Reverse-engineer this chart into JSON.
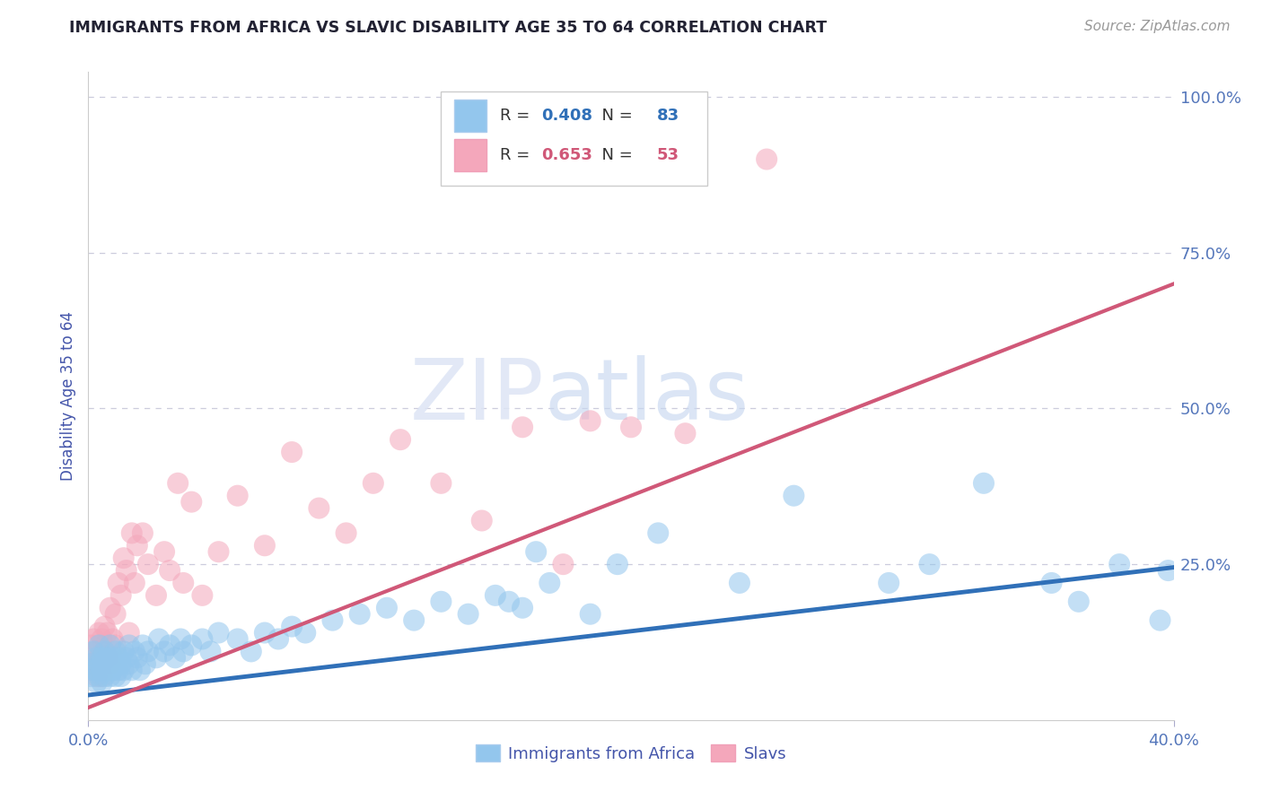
{
  "title": "IMMIGRANTS FROM AFRICA VS SLAVIC DISABILITY AGE 35 TO 64 CORRELATION CHART",
  "source": "Source: ZipAtlas.com",
  "ylabel": "Disability Age 35 to 64",
  "xlim": [
    0.0,
    0.4
  ],
  "ylim": [
    0.0,
    1.04
  ],
  "xticks": [
    0.0,
    0.4
  ],
  "xticklabels": [
    "0.0%",
    "40.0%"
  ],
  "ytick_positions": [
    0.25,
    0.5,
    0.75,
    1.0
  ],
  "yticklabels": [
    "25.0%",
    "50.0%",
    "75.0%",
    "100.0%"
  ],
  "blue_R": 0.408,
  "blue_N": 83,
  "pink_R": 0.653,
  "pink_N": 53,
  "blue_color": "#93C6ED",
  "pink_color": "#F4A7BB",
  "blue_line_color": "#3070B8",
  "pink_line_color": "#D05878",
  "title_color": "#222233",
  "axis_label_color": "#4455AA",
  "tick_color": "#5577BB",
  "grid_color": "#CCCCDD",
  "watermark_zip": "ZIP",
  "watermark_atlas": "atlas",
  "blue_trend_x": [
    0.0,
    0.4
  ],
  "blue_trend_y": [
    0.04,
    0.245
  ],
  "pink_trend_x": [
    0.0,
    0.4
  ],
  "pink_trend_y": [
    0.02,
    0.7
  ],
  "blue_scatter_x": [
    0.001,
    0.001,
    0.002,
    0.002,
    0.003,
    0.003,
    0.003,
    0.004,
    0.004,
    0.004,
    0.005,
    0.005,
    0.005,
    0.006,
    0.006,
    0.006,
    0.007,
    0.007,
    0.008,
    0.008,
    0.008,
    0.009,
    0.009,
    0.01,
    0.01,
    0.01,
    0.011,
    0.011,
    0.012,
    0.012,
    0.013,
    0.013,
    0.014,
    0.015,
    0.015,
    0.016,
    0.017,
    0.018,
    0.019,
    0.02,
    0.021,
    0.022,
    0.025,
    0.026,
    0.028,
    0.03,
    0.032,
    0.034,
    0.035,
    0.038,
    0.042,
    0.045,
    0.048,
    0.055,
    0.06,
    0.065,
    0.07,
    0.075,
    0.08,
    0.09,
    0.1,
    0.11,
    0.12,
    0.13,
    0.14,
    0.15,
    0.155,
    0.16,
    0.165,
    0.17,
    0.185,
    0.195,
    0.21,
    0.24,
    0.26,
    0.295,
    0.31,
    0.33,
    0.355,
    0.365,
    0.38,
    0.395,
    0.398
  ],
  "blue_scatter_y": [
    0.07,
    0.09,
    0.08,
    0.11,
    0.06,
    0.1,
    0.08,
    0.09,
    0.07,
    0.12,
    0.08,
    0.1,
    0.06,
    0.09,
    0.11,
    0.07,
    0.1,
    0.08,
    0.09,
    0.12,
    0.07,
    0.1,
    0.08,
    0.09,
    0.07,
    0.11,
    0.08,
    0.1,
    0.09,
    0.07,
    0.11,
    0.08,
    0.1,
    0.09,
    0.12,
    0.08,
    0.11,
    0.1,
    0.08,
    0.12,
    0.09,
    0.11,
    0.1,
    0.13,
    0.11,
    0.12,
    0.1,
    0.13,
    0.11,
    0.12,
    0.13,
    0.11,
    0.14,
    0.13,
    0.11,
    0.14,
    0.13,
    0.15,
    0.14,
    0.16,
    0.17,
    0.18,
    0.16,
    0.19,
    0.17,
    0.2,
    0.19,
    0.18,
    0.27,
    0.22,
    0.17,
    0.25,
    0.3,
    0.22,
    0.36,
    0.22,
    0.25,
    0.38,
    0.22,
    0.19,
    0.25,
    0.16,
    0.24
  ],
  "pink_scatter_x": [
    0.001,
    0.001,
    0.002,
    0.002,
    0.003,
    0.003,
    0.004,
    0.004,
    0.005,
    0.005,
    0.005,
    0.006,
    0.006,
    0.007,
    0.007,
    0.008,
    0.008,
    0.009,
    0.01,
    0.01,
    0.011,
    0.012,
    0.013,
    0.014,
    0.015,
    0.016,
    0.017,
    0.018,
    0.02,
    0.022,
    0.025,
    0.028,
    0.03,
    0.033,
    0.035,
    0.038,
    0.042,
    0.048,
    0.055,
    0.065,
    0.075,
    0.085,
    0.095,
    0.105,
    0.115,
    0.13,
    0.145,
    0.16,
    0.175,
    0.185,
    0.2,
    0.22,
    0.25
  ],
  "pink_scatter_y": [
    0.08,
    0.12,
    0.09,
    0.13,
    0.07,
    0.11,
    0.1,
    0.14,
    0.09,
    0.13,
    0.07,
    0.11,
    0.15,
    0.1,
    0.14,
    0.09,
    0.18,
    0.13,
    0.12,
    0.17,
    0.22,
    0.2,
    0.26,
    0.24,
    0.14,
    0.3,
    0.22,
    0.28,
    0.3,
    0.25,
    0.2,
    0.27,
    0.24,
    0.38,
    0.22,
    0.35,
    0.2,
    0.27,
    0.36,
    0.28,
    0.43,
    0.34,
    0.3,
    0.38,
    0.45,
    0.38,
    0.32,
    0.47,
    0.25,
    0.48,
    0.47,
    0.46,
    0.9
  ]
}
